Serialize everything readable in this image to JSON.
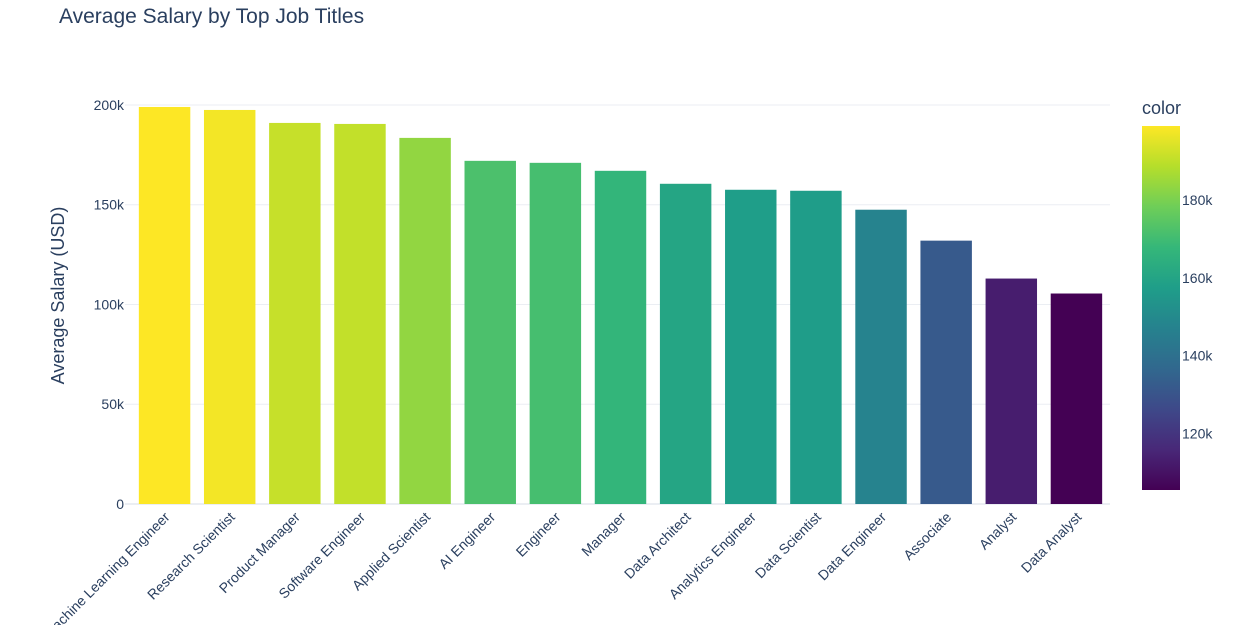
{
  "chart_data": {
    "type": "bar",
    "title": "Average Salary by Top Job Titles",
    "xlabel": "",
    "ylabel": "Average Salary (USD)",
    "ylim": [
      0,
      205000
    ],
    "yticks": [
      {
        "value": 0,
        "label": "0"
      },
      {
        "value": 50000,
        "label": "50k"
      },
      {
        "value": 100000,
        "label": "100k"
      },
      {
        "value": 150000,
        "label": "150k"
      },
      {
        "value": 200000,
        "label": "200k"
      }
    ],
    "categories": [
      "Machine Learning Engineer",
      "Research Scientist",
      "Product Manager",
      "Software Engineer",
      "Applied Scientist",
      "AI Engineer",
      "Engineer",
      "Manager",
      "Data Architect",
      "Analytics Engineer",
      "Data Scientist",
      "Data Engineer",
      "Associate",
      "Analyst",
      "Data Analyst"
    ],
    "values": [
      199000,
      197500,
      191000,
      190500,
      183500,
      172000,
      171000,
      167000,
      160500,
      157500,
      157000,
      147500,
      132000,
      113000,
      105500
    ],
    "grid": true,
    "legend": "none",
    "colorbar": {
      "title": "color",
      "colorscale": "Viridis",
      "range": [
        105500,
        199000
      ],
      "ticks": [
        {
          "value": 120000,
          "label": "120k"
        },
        {
          "value": 140000,
          "label": "140k"
        },
        {
          "value": 160000,
          "label": "160k"
        },
        {
          "value": 180000,
          "label": "180k"
        }
      ]
    }
  }
}
